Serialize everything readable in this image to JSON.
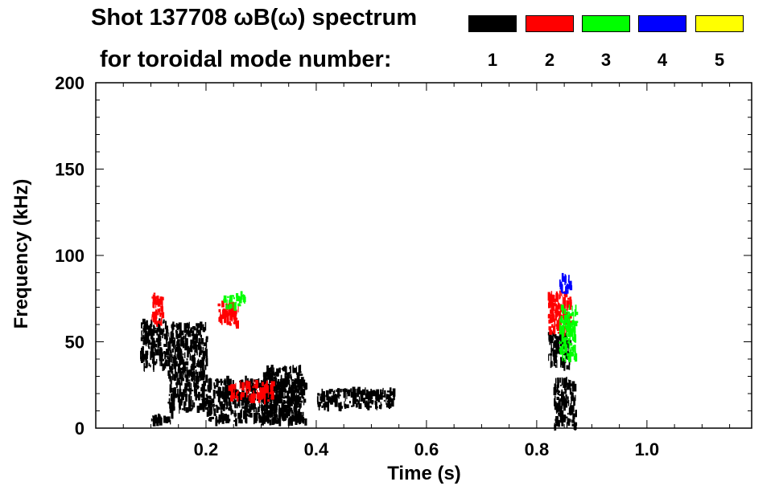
{
  "title_line1": "Shot 137708 ωB(ω) spectrum",
  "title_line2": "for toroidal mode number:",
  "legend": [
    {
      "label": "1",
      "color": "#000000"
    },
    {
      "label": "2",
      "color": "#ff0000"
    },
    {
      "label": "3",
      "color": "#00ff00"
    },
    {
      "label": "4",
      "color": "#0000ff"
    },
    {
      "label": "5",
      "color": "#ffff00"
    }
  ],
  "chart_data": {
    "type": "heatmap",
    "title": "Shot 137708 ωB(ω) spectrum for toroidal mode number",
    "xlabel": "Time (s)",
    "ylabel": "Frequency (kHz)",
    "xlim": [
      0.0,
      1.19
    ],
    "ylim": [
      0,
      200
    ],
    "xticks": [
      0.2,
      0.4,
      0.6,
      0.8,
      1.0
    ],
    "xtick_labels": [
      "0.2",
      "0.4",
      "0.6",
      "0.8",
      "1.0"
    ],
    "yticks": [
      0,
      50,
      100,
      150,
      200
    ],
    "ytick_labels": [
      "0",
      "50",
      "100",
      "150",
      "200"
    ],
    "grid": false,
    "legend_position": "top",
    "series": [
      {
        "name": "n=1",
        "color": "#000000",
        "features": [
          {
            "t": [
              0.08,
              0.13
            ],
            "f": [
              35,
              62
            ]
          },
          {
            "t": [
              0.1,
              0.14
            ],
            "f": [
              3,
              8
            ]
          },
          {
            "t": [
              0.13,
              0.2
            ],
            "f": [
              10,
              60
            ]
          },
          {
            "t": [
              0.2,
              0.38
            ],
            "f": [
              3,
              28
            ]
          },
          {
            "t": [
              0.3,
              0.37
            ],
            "f": [
              5,
              35
            ]
          },
          {
            "t": [
              0.4,
              0.54
            ],
            "f": [
              12,
              22
            ]
          },
          {
            "t": [
              0.82,
              0.86
            ],
            "f": [
              35,
              55
            ]
          },
          {
            "t": [
              0.83,
              0.87
            ],
            "f": [
              0,
              28
            ]
          }
        ]
      },
      {
        "name": "n=2",
        "color": "#ff0000",
        "features": [
          {
            "t": [
              0.1,
              0.12
            ],
            "f": [
              60,
              78
            ]
          },
          {
            "t": [
              0.22,
              0.26
            ],
            "f": [
              60,
              72
            ]
          },
          {
            "t": [
              0.24,
              0.32
            ],
            "f": [
              16,
              26
            ]
          },
          {
            "t": [
              0.82,
              0.86
            ],
            "f": [
              55,
              78
            ]
          }
        ]
      },
      {
        "name": "n=3",
        "color": "#00ff00",
        "features": [
          {
            "t": [
              0.23,
              0.27
            ],
            "f": [
              70,
              77
            ]
          },
          {
            "t": [
              0.84,
              0.87
            ],
            "f": [
              40,
              70
            ]
          }
        ]
      },
      {
        "name": "n=4",
        "color": "#0000ff",
        "features": [
          {
            "t": [
              0.84,
              0.86
            ],
            "f": [
              78,
              88
            ]
          }
        ]
      },
      {
        "name": "n=5",
        "color": "#ffff00",
        "features": []
      }
    ]
  }
}
